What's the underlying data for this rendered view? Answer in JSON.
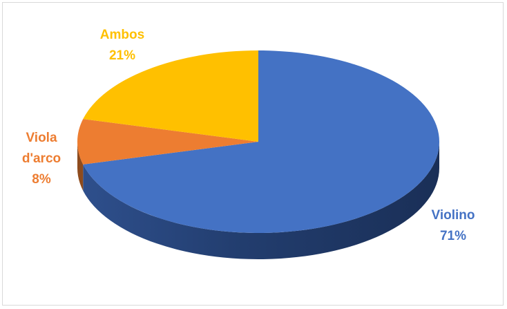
{
  "chart_data": {
    "type": "pie",
    "style": "3d",
    "categories": [
      "Violino",
      "Viola d'arco",
      "Ambos"
    ],
    "values": [
      71,
      8,
      21
    ],
    "value_labels": [
      "71%",
      "8%",
      "21%"
    ],
    "colors": [
      "#4472c4",
      "#ed7d31",
      "#ffc000"
    ],
    "label_colors": [
      "#4472c4",
      "#ed7d31",
      "#ffc000"
    ],
    "labels": [
      {
        "lines": [
          "Violino",
          "71%"
        ]
      },
      {
        "lines": [
          "Viola",
          "d'arco",
          "8%"
        ]
      },
      {
        "lines": [
          "Ambos",
          "21%"
        ]
      }
    ],
    "legend": "none"
  }
}
